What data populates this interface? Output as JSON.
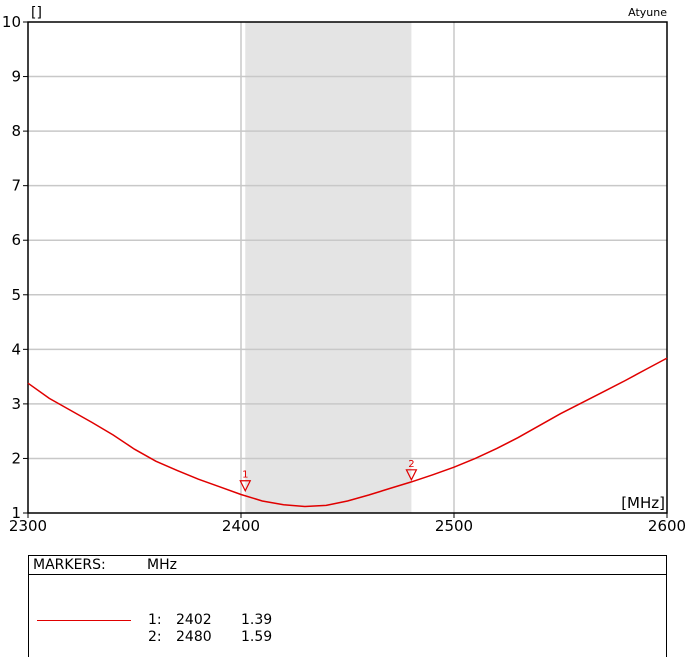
{
  "chart_data": {
    "type": "line",
    "title_left": "[]",
    "title_right": "Atyune",
    "xlabel": "[MHz]",
    "xlim": [
      2300,
      2600
    ],
    "ylim": [
      1,
      10
    ],
    "x_ticks": [
      "2300",
      "2400",
      "2500",
      "2600"
    ],
    "y_ticks": [
      "10",
      "9",
      "8",
      "7",
      "6",
      "5",
      "4",
      "3",
      "2",
      "1"
    ],
    "band": [
      2402,
      2480
    ],
    "grid": true,
    "series": [
      {
        "color": "#e00000",
        "x": [
          2300,
          2310,
          2320,
          2330,
          2340,
          2350,
          2360,
          2370,
          2380,
          2390,
          2400,
          2410,
          2420,
          2430,
          2440,
          2450,
          2460,
          2470,
          2480,
          2490,
          2500,
          2510,
          2520,
          2530,
          2540,
          2550,
          2560,
          2570,
          2580,
          2590,
          2600
        ],
        "y": [
          3.38,
          3.1,
          2.88,
          2.66,
          2.43,
          2.17,
          1.95,
          1.78,
          1.62,
          1.48,
          1.34,
          1.22,
          1.15,
          1.12,
          1.14,
          1.22,
          1.33,
          1.45,
          1.57,
          1.7,
          1.84,
          2.0,
          2.18,
          2.38,
          2.6,
          2.82,
          3.02,
          3.22,
          3.42,
          3.63,
          3.84
        ]
      }
    ],
    "markers": [
      {
        "label": "1",
        "x": 2402,
        "y": 1.39
      },
      {
        "label": "2",
        "x": 2480,
        "y": 1.59
      }
    ]
  },
  "markers_panel": {
    "title": "MARKERS:",
    "unit": "MHz",
    "rows": [
      {
        "id": "1:",
        "freq": "2402",
        "value": "1.39"
      },
      {
        "id": "2:",
        "freq": "2480",
        "value": "1.59"
      }
    ]
  }
}
